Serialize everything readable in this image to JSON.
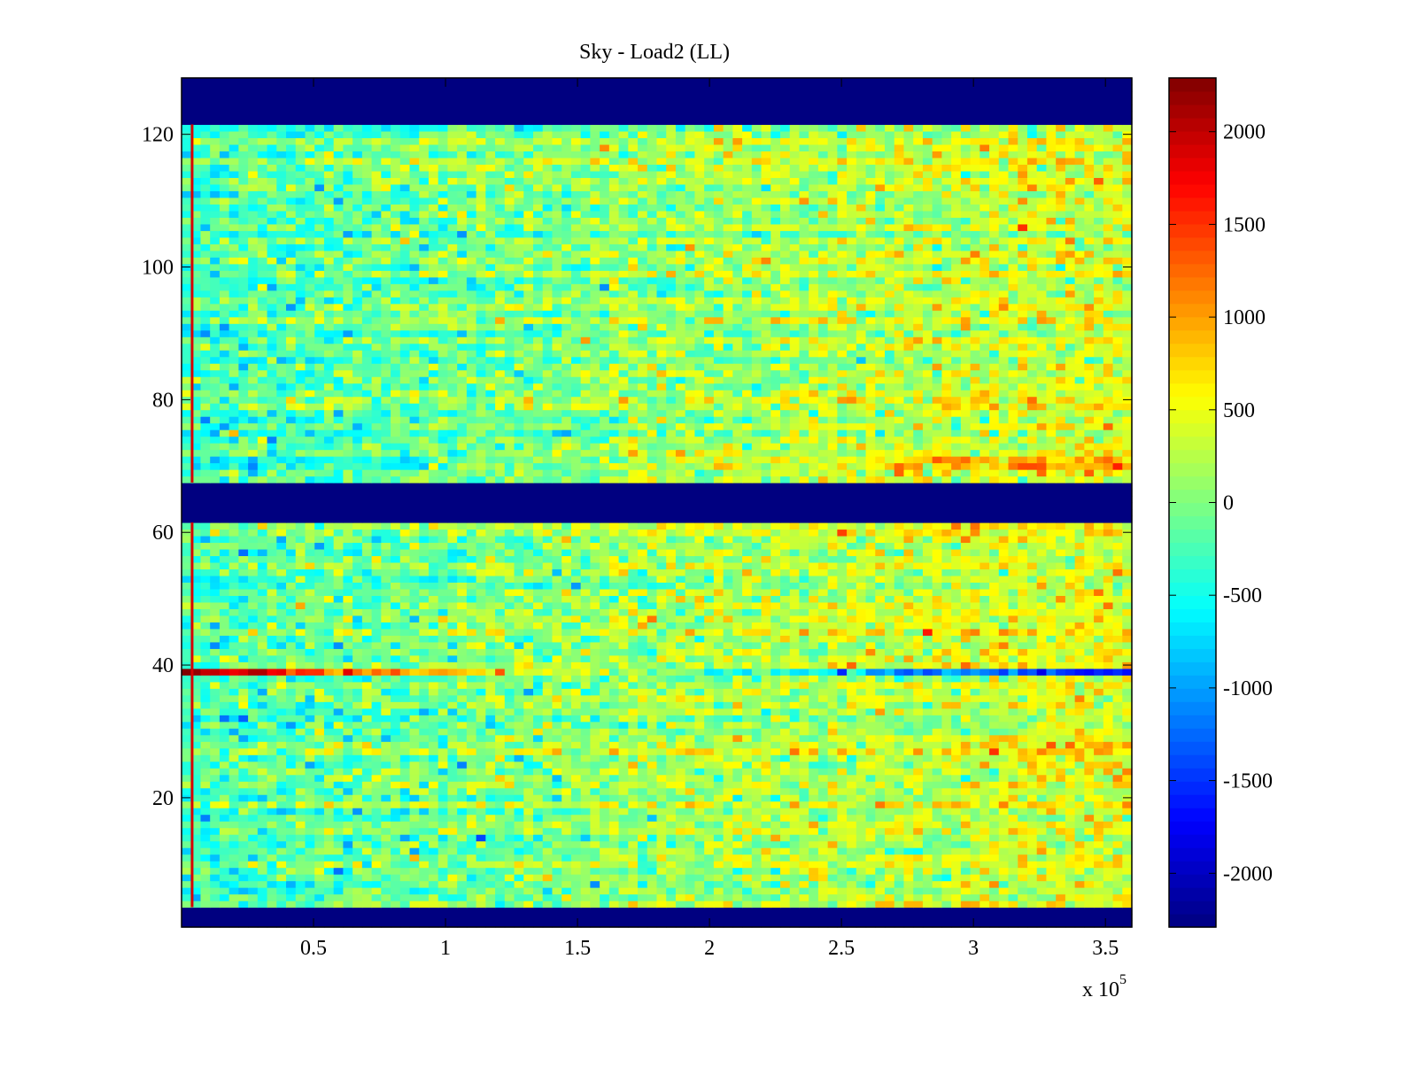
{
  "chart_data": {
    "type": "heatmap",
    "title": "Sky - Load2 (LL)",
    "xlabel": "",
    "ylabel": "",
    "x_multiplier_label": "x 10",
    "x_multiplier_exponent": "5",
    "xlim": [
      0,
      3.6
    ],
    "ylim": [
      0.5,
      128.5
    ],
    "xticks": [
      0.5,
      1,
      1.5,
      2,
      2.5,
      3,
      3.5
    ],
    "xtick_labels": [
      "0.5",
      "1",
      "1.5",
      "2",
      "2.5",
      "3",
      "3.5"
    ],
    "yticks": [
      20,
      40,
      60,
      80,
      100,
      120
    ],
    "ytick_labels": [
      "20",
      "40",
      "60",
      "80",
      "100",
      "120"
    ],
    "colormap": "jet",
    "clim": [
      -2290,
      2290
    ],
    "colorbar_ticks": [
      -2000,
      -1500,
      -1000,
      -500,
      0,
      500,
      1000,
      1500,
      2000
    ],
    "colorbar_tick_labels": [
      "-2000",
      "-1500",
      "-1000",
      "-500",
      "0",
      "500",
      "1000",
      "1500",
      "2000"
    ],
    "n_rows": 128,
    "n_cols": 100,
    "masked_rows": [
      [
        1,
        3
      ],
      [
        62,
        67
      ],
      [
        122,
        128
      ]
    ],
    "masked_value": -2290,
    "anomalous_row": {
      "row": 39,
      "start_value": 2290,
      "end_value": -1700
    },
    "anomalous_column": {
      "x": 0.04,
      "value": 1900
    },
    "trend": {
      "value_at_x0": -250,
      "value_at_xmax": 450,
      "noise_std": 300
    },
    "row_70_trend": {
      "value_at_x0": -700,
      "value_at_xmax": 1100
    },
    "grid": false
  }
}
